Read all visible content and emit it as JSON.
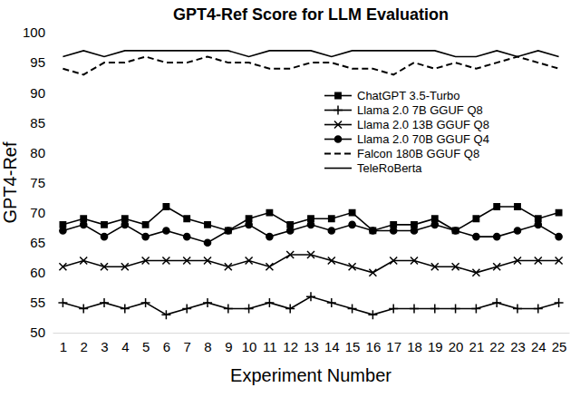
{
  "chart_data": {
    "type": "line",
    "title": "GPT4-Ref Score for LLM Evaluation",
    "x_label": "Experiment Number",
    "y_label": "GPT4-Ref",
    "x": [
      1,
      2,
      3,
      4,
      5,
      6,
      7,
      8,
      9,
      10,
      11,
      12,
      13,
      14,
      15,
      16,
      17,
      18,
      19,
      20,
      21,
      22,
      23,
      24,
      25
    ],
    "xlim": [
      0.5,
      25.5
    ],
    "xticks": [
      1,
      2,
      3,
      4,
      5,
      6,
      7,
      8,
      9,
      10,
      11,
      12,
      13,
      14,
      15,
      16,
      17,
      18,
      19,
      20,
      21,
      22,
      23,
      24,
      25
    ],
    "ylim": [
      50,
      100
    ],
    "yticks": [
      50,
      55,
      60,
      65,
      70,
      75,
      80,
      85,
      90,
      95,
      100
    ],
    "grid": false,
    "legend": "right",
    "series": [
      {
        "name": "ChatGPT 3.5-Turbo",
        "color": "#000000",
        "marker": "square",
        "line_style": "solid",
        "values": [
          68,
          69,
          68,
          69,
          68,
          71,
          69,
          68,
          67,
          69,
          70,
          68,
          69,
          69,
          70,
          67,
          68,
          68,
          69,
          67,
          69,
          71,
          71,
          69,
          70
        ]
      },
      {
        "name": "Llama 2.0 7B GGUF Q8",
        "color": "#000000",
        "marker": "plus",
        "line_style": "solid",
        "values": [
          55,
          54,
          55,
          54,
          55,
          53,
          54,
          55,
          54,
          54,
          55,
          54,
          56,
          55,
          54,
          53,
          54,
          54,
          54,
          54,
          54,
          55,
          54,
          54,
          55
        ]
      },
      {
        "name": "Llama 2.0 13B GGUF Q8",
        "color": "#000000",
        "marker": "x",
        "line_style": "solid",
        "values": [
          61,
          62,
          61,
          61,
          62,
          62,
          62,
          62,
          61,
          62,
          61,
          63,
          63,
          62,
          61,
          60,
          62,
          62,
          61,
          61,
          60,
          61,
          62,
          62,
          62
        ]
      },
      {
        "name": "Llama 2.0 70B GGUF Q4",
        "color": "#000000",
        "marker": "circle",
        "line_style": "solid",
        "values": [
          67,
          68,
          66,
          68,
          66,
          67,
          66,
          65,
          67,
          68,
          66,
          67,
          68,
          67,
          68,
          67,
          67,
          67,
          68,
          67,
          66,
          66,
          67,
          68,
          66
        ]
      },
      {
        "name": "Falcon 180B GGUF Q8",
        "color": "#000000",
        "marker": "none",
        "line_style": "dashed",
        "values": [
          94,
          93,
          95,
          95,
          96,
          95,
          95,
          96,
          95,
          95,
          94,
          94,
          95,
          95,
          94,
          94,
          93,
          95,
          94,
          95,
          94,
          95,
          96,
          95,
          94
        ]
      },
      {
        "name": "TeleRoBerta",
        "color": "#000000",
        "marker": "none",
        "line_style": "solid",
        "values": [
          96,
          97,
          96,
          97,
          97,
          97,
          97,
          97,
          97,
          96,
          97,
          97,
          97,
          96,
          97,
          97,
          97,
          97,
          97,
          96,
          96,
          97,
          96,
          97,
          96
        ]
      }
    ]
  }
}
